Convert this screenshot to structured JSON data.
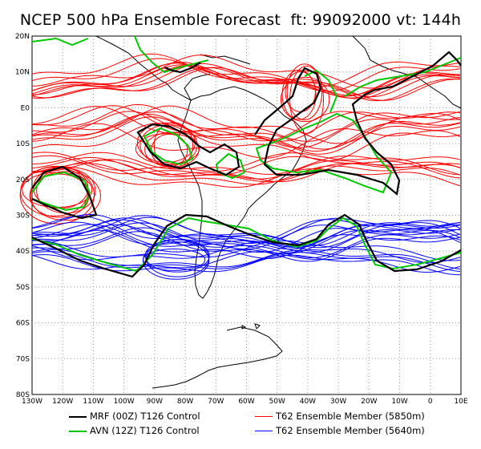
{
  "title": "NCEP 500 hPa Ensemble Forecast  ft: 99092000 vt: 144h",
  "axes": {
    "lat_labels": [
      "20N",
      "10N",
      "E0",
      "10S",
      "20S",
      "30S",
      "40S",
      "50S",
      "60S",
      "70S",
      "80S"
    ],
    "lon_labels": [
      "130W",
      "120W",
      "110W",
      "100W",
      "90W",
      "80W",
      "70W",
      "60W",
      "50W",
      "40W",
      "30W",
      "20W",
      "10W",
      "0",
      "10E"
    ]
  },
  "legend": [
    {
      "label": "MRF (00Z) T126 Control",
      "color": "#000000"
    },
    {
      "label": "T62 Ensemble Member (5850m)",
      "color": "#ff0000"
    },
    {
      "label": "AVN (12Z) T126 Control",
      "color": "#00c800"
    },
    {
      "label": "T62 Ensemble Member (5640m)",
      "color": "#0000ff"
    }
  ],
  "colors": {
    "mrf": "#000000",
    "avn": "#00c800",
    "red": "#ff0000",
    "blue": "#0000ff",
    "grid": "#999999"
  }
}
